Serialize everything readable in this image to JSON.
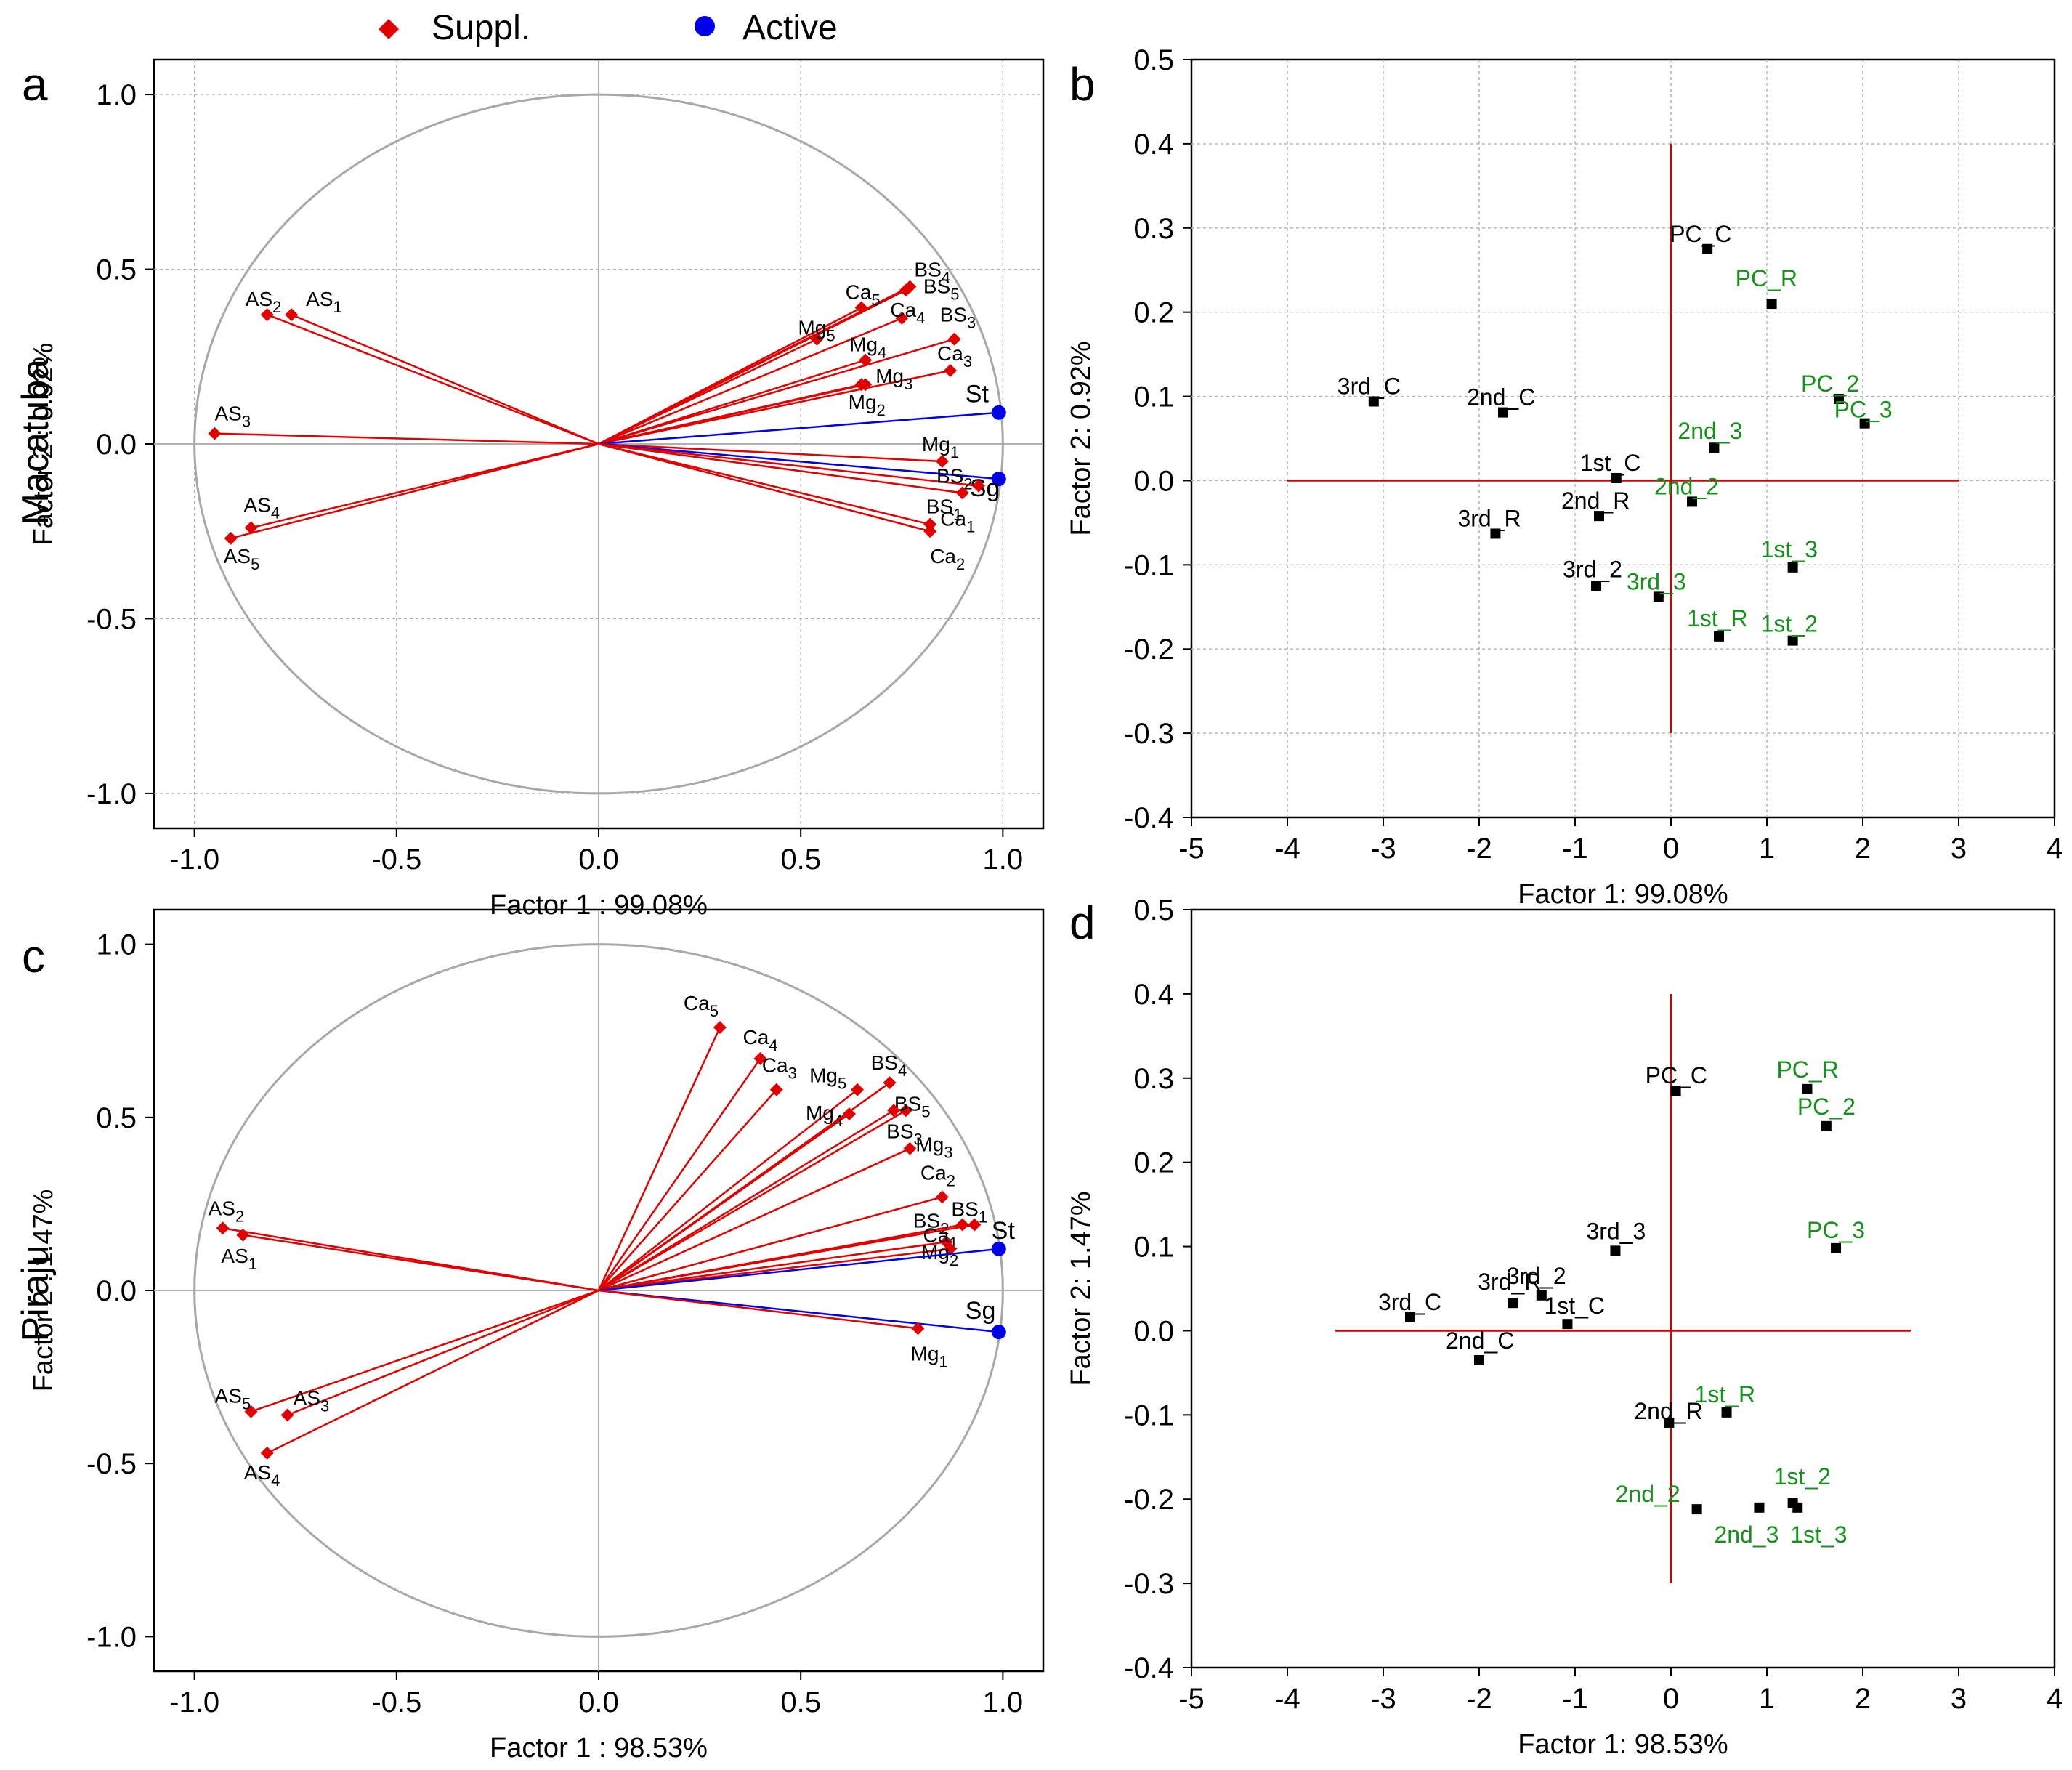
{
  "legend": {
    "items": [
      {
        "label": "Suppl.",
        "color": "#e00000",
        "marker": "diamond"
      },
      {
        "label": "Active",
        "color": "#0000e6",
        "marker": "circle"
      }
    ]
  },
  "site_labels": {
    "macatuba": "Macatuba",
    "piraju": "Piraju"
  },
  "panel_letters": {
    "a": "a",
    "b": "b",
    "c": "c",
    "d": "d"
  },
  "colors": {
    "suppl": "#e00000",
    "active": "#0000e6",
    "green": "#16921c",
    "black": "#000000",
    "axis_line": "#d40000",
    "grid": "#b0b0b0"
  },
  "chart_data": [
    {
      "id": "a",
      "type": "scatter",
      "subtype": "pca-correlation-circle",
      "site": "Macatuba",
      "xlabel": "Factor 1 : 99.08%",
      "ylabel": "Factor 2 :  0.92%",
      "xlim": [
        -1.1,
        1.1
      ],
      "ylim": [
        -1.1,
        1.1
      ],
      "xticks": [
        -1.0,
        -0.5,
        0.0,
        0.5,
        1.0
      ],
      "yticks": [
        -1.0,
        -0.5,
        0.0,
        0.5,
        1.0
      ],
      "xtick_labels": [
        "-1.0",
        "-0.5",
        "0.0",
        "0.5",
        "1.0"
      ],
      "ytick_labels": [
        "-1.0",
        "-0.5",
        "0.0",
        "0.5",
        "1.0"
      ],
      "grid": true,
      "unit_circle": true,
      "points": [
        {
          "label": "AS",
          "sub": "1",
          "x": -0.76,
          "y": 0.37,
          "group": "suppl"
        },
        {
          "label": "AS",
          "sub": "2",
          "x": -0.82,
          "y": 0.37,
          "group": "suppl"
        },
        {
          "label": "AS",
          "sub": "3",
          "x": -0.95,
          "y": 0.03,
          "group": "suppl"
        },
        {
          "label": "AS",
          "sub": "4",
          "x": -0.86,
          "y": -0.24,
          "group": "suppl"
        },
        {
          "label": "AS",
          "sub": "5",
          "x": -0.91,
          "y": -0.27,
          "group": "suppl"
        },
        {
          "label": "BS",
          "sub": "4",
          "x": 0.77,
          "y": 0.45,
          "group": "suppl"
        },
        {
          "label": "BS",
          "sub": "5",
          "x": 0.76,
          "y": 0.44,
          "group": "suppl"
        },
        {
          "label": "Ca",
          "sub": "5",
          "x": 0.65,
          "y": 0.39,
          "group": "suppl"
        },
        {
          "label": "Ca",
          "sub": "4",
          "x": 0.75,
          "y": 0.36,
          "group": "suppl"
        },
        {
          "label": "Mg",
          "sub": "5",
          "x": 0.54,
          "y": 0.3,
          "group": "suppl"
        },
        {
          "label": "BS",
          "sub": "3",
          "x": 0.88,
          "y": 0.3,
          "group": "suppl"
        },
        {
          "label": "Mg",
          "sub": "4",
          "x": 0.66,
          "y": 0.24,
          "group": "suppl"
        },
        {
          "label": "Ca",
          "sub": "3",
          "x": 0.87,
          "y": 0.21,
          "group": "suppl"
        },
        {
          "label": "Mg",
          "sub": "3",
          "x": 0.66,
          "y": 0.17,
          "group": "suppl"
        },
        {
          "label": "Mg",
          "sub": "2",
          "x": 0.65,
          "y": 0.17,
          "group": "suppl"
        },
        {
          "label": "St",
          "sub": "",
          "x": 0.99,
          "y": 0.09,
          "group": "active"
        },
        {
          "label": "Mg",
          "sub": "1",
          "x": 0.85,
          "y": -0.05,
          "group": "suppl"
        },
        {
          "label": "Sg",
          "sub": "",
          "x": 0.99,
          "y": -0.1,
          "group": "active"
        },
        {
          "label": "BS",
          "sub": "2",
          "x": 0.94,
          "y": -0.12,
          "group": "suppl"
        },
        {
          "label": "BS",
          "sub": "1",
          "x": 0.9,
          "y": -0.14,
          "group": "suppl"
        },
        {
          "label": "Ca",
          "sub": "1",
          "x": 0.82,
          "y": -0.23,
          "group": "suppl"
        },
        {
          "label": "Ca",
          "sub": "2",
          "x": 0.82,
          "y": -0.25,
          "group": "suppl"
        }
      ]
    },
    {
      "id": "b",
      "type": "scatter",
      "site": "Macatuba",
      "xlabel": "Factor 1: 99.08%",
      "ylabel": "Factor 2:  0.92%",
      "xlim": [
        -5,
        4
      ],
      "ylim": [
        -0.4,
        0.5
      ],
      "xticks": [
        -5,
        -4,
        -3,
        -2,
        -1,
        0,
        1,
        2,
        3,
        4
      ],
      "yticks": [
        -0.4,
        -0.3,
        -0.2,
        -0.1,
        0.0,
        0.1,
        0.2,
        0.3,
        0.4,
        0.5
      ],
      "xtick_labels": [
        "-5",
        "-4",
        "-3",
        "-2",
        "-1",
        "0",
        "1",
        "2",
        "3",
        "4"
      ],
      "ytick_labels": [
        "-0.4",
        "-0.3",
        "-0.2",
        "-0.1",
        "0.0",
        "0.1",
        "0.2",
        "0.3",
        "0.4",
        "0.5"
      ],
      "grid": true,
      "ref_h": [
        -4,
        3
      ],
      "ref_v": [
        -0.3,
        0.4
      ],
      "points": [
        {
          "label": "PC_C",
          "x": 0.38,
          "y": 0.275,
          "color": "black"
        },
        {
          "label": "PC_R",
          "x": 1.05,
          "y": 0.21,
          "color": "green"
        },
        {
          "label": "PC_2",
          "x": 1.75,
          "y": 0.097,
          "color": "green"
        },
        {
          "label": "PC_3",
          "x": 2.02,
          "y": 0.068,
          "color": "green"
        },
        {
          "label": "3rd_C",
          "x": -3.1,
          "y": 0.094,
          "color": "black"
        },
        {
          "label": "2nd_C",
          "x": -1.75,
          "y": 0.081,
          "color": "black"
        },
        {
          "label": "2nd_3",
          "x": 0.45,
          "y": 0.039,
          "color": "green"
        },
        {
          "label": "1st_C",
          "x": -0.57,
          "y": 0.003,
          "color": "black"
        },
        {
          "label": "2nd_2",
          "x": 0.22,
          "y": -0.025,
          "color": "green"
        },
        {
          "label": "2nd_R",
          "x": -0.75,
          "y": -0.042,
          "color": "black"
        },
        {
          "label": "3rd_R",
          "x": -1.83,
          "y": -0.063,
          "color": "black"
        },
        {
          "label": "1st_3",
          "x": 1.27,
          "y": -0.103,
          "color": "green"
        },
        {
          "label": "3rd_2",
          "x": -0.78,
          "y": -0.125,
          "color": "black"
        },
        {
          "label": "3rd_3",
          "x": -0.13,
          "y": -0.138,
          "color": "green"
        },
        {
          "label": "1st_R",
          "x": 0.5,
          "y": -0.185,
          "color": "green"
        },
        {
          "label": "1st_2",
          "x": 1.27,
          "y": -0.19,
          "color": "green"
        }
      ]
    },
    {
      "id": "c",
      "type": "scatter",
      "subtype": "pca-correlation-circle",
      "site": "Piraju",
      "xlabel": "Factor 1 : 98.53%",
      "ylabel": "Factor 2 :  1.47%",
      "xlim": [
        -1.1,
        1.1
      ],
      "ylim": [
        -1.1,
        1.1
      ],
      "xticks": [
        -1.0,
        -0.5,
        0.0,
        0.5,
        1.0
      ],
      "yticks": [
        -1.0,
        -0.5,
        0.0,
        0.5,
        1.0
      ],
      "xtick_labels": [
        "-1.0",
        "-0.5",
        "0.0",
        "0.5",
        "1.0"
      ],
      "ytick_labels": [
        "-1.0",
        "-0.5",
        "0.0",
        "0.5",
        "1.0"
      ],
      "grid": false,
      "unit_circle": true,
      "points": [
        {
          "label": "AS",
          "sub": "2",
          "x": -0.93,
          "y": 0.18,
          "group": "suppl"
        },
        {
          "label": "AS",
          "sub": "1",
          "x": -0.88,
          "y": 0.16,
          "group": "suppl"
        },
        {
          "label": "AS",
          "sub": "5",
          "x": -0.86,
          "y": -0.35,
          "group": "suppl"
        },
        {
          "label": "AS",
          "sub": "3",
          "x": -0.77,
          "y": -0.36,
          "group": "suppl"
        },
        {
          "label": "AS",
          "sub": "4",
          "x": -0.82,
          "y": -0.47,
          "group": "suppl"
        },
        {
          "label": "Ca",
          "sub": "5",
          "x": 0.3,
          "y": 0.76,
          "group": "suppl"
        },
        {
          "label": "Ca",
          "sub": "4",
          "x": 0.4,
          "y": 0.67,
          "group": "suppl"
        },
        {
          "label": "Ca",
          "sub": "3",
          "x": 0.44,
          "y": 0.58,
          "group": "suppl"
        },
        {
          "label": "Mg",
          "sub": "5",
          "x": 0.64,
          "y": 0.58,
          "group": "suppl"
        },
        {
          "label": "Mg",
          "sub": "4",
          "x": 0.62,
          "y": 0.51,
          "group": "suppl"
        },
        {
          "label": "BS",
          "sub": "4",
          "x": 0.72,
          "y": 0.6,
          "group": "suppl"
        },
        {
          "label": "BS",
          "sub": "5",
          "x": 0.76,
          "y": 0.52,
          "group": "suppl"
        },
        {
          "label": "BS",
          "sub": "3",
          "x": 0.73,
          "y": 0.52,
          "group": "suppl"
        },
        {
          "label": "Mg",
          "sub": "3",
          "x": 0.77,
          "y": 0.41,
          "group": "suppl"
        },
        {
          "label": "Ca",
          "sub": "2",
          "x": 0.85,
          "y": 0.27,
          "group": "suppl"
        },
        {
          "label": "BS",
          "sub": "2",
          "x": 0.9,
          "y": 0.19,
          "group": "suppl"
        },
        {
          "label": "BS",
          "sub": "1",
          "x": 0.93,
          "y": 0.19,
          "group": "suppl"
        },
        {
          "label": "Ca",
          "sub": "1",
          "x": 0.86,
          "y": 0.14,
          "group": "suppl"
        },
        {
          "label": "Mg",
          "sub": "2",
          "x": 0.87,
          "y": 0.12,
          "group": "suppl"
        },
        {
          "label": "St",
          "sub": "",
          "x": 0.99,
          "y": 0.12,
          "group": "active"
        },
        {
          "label": "Sg",
          "sub": "",
          "x": 0.99,
          "y": -0.12,
          "group": "active"
        },
        {
          "label": "Mg",
          "sub": "1",
          "x": 0.79,
          "y": -0.11,
          "group": "suppl"
        }
      ]
    },
    {
      "id": "d",
      "type": "scatter",
      "site": "Piraju",
      "xlabel": "Factor 1: 98.53%",
      "ylabel": "Factor 2:  1.47%",
      "xlim": [
        -5,
        4
      ],
      "ylim": [
        -0.4,
        0.5
      ],
      "xticks": [
        -5,
        -4,
        -3,
        -2,
        -1,
        0,
        1,
        2,
        3,
        4
      ],
      "yticks": [
        -0.4,
        -0.3,
        -0.2,
        -0.1,
        0.0,
        0.1,
        0.2,
        0.3,
        0.4,
        0.5
      ],
      "xtick_labels": [
        "-5",
        "-4",
        "-3",
        "-2",
        "-1",
        "0",
        "1",
        "2",
        "3",
        "4"
      ],
      "ytick_labels": [
        "-0.4",
        "-0.3",
        "-0.2",
        "-0.1",
        "0.0",
        "0.1",
        "0.2",
        "0.3",
        "0.4",
        "0.5"
      ],
      "grid": false,
      "ref_h": [
        -3.5,
        2.5
      ],
      "ref_v": [
        -0.3,
        0.4
      ],
      "points": [
        {
          "label": "PC_C",
          "x": 0.05,
          "y": 0.285,
          "color": "black"
        },
        {
          "label": "PC_R",
          "x": 1.42,
          "y": 0.287,
          "color": "green"
        },
        {
          "label": "PC_2",
          "x": 1.62,
          "y": 0.243,
          "color": "green"
        },
        {
          "label": "PC_3",
          "x": 1.72,
          "y": 0.098,
          "color": "green"
        },
        {
          "label": "3rd_3",
          "x": -0.58,
          "y": 0.095,
          "color": "black"
        },
        {
          "label": "3rd_2",
          "x": -1.35,
          "y": 0.042,
          "color": "black"
        },
        {
          "label": "3rd_R",
          "x": -1.65,
          "y": 0.033,
          "color": "black"
        },
        {
          "label": "3rd_C",
          "x": -2.72,
          "y": 0.016,
          "color": "black"
        },
        {
          "label": "1st_C",
          "x": -1.08,
          "y": 0.008,
          "color": "black"
        },
        {
          "label": "2nd_C",
          "x": -2.0,
          "y": -0.035,
          "color": "black"
        },
        {
          "label": "1st_R",
          "x": 0.58,
          "y": -0.097,
          "color": "green"
        },
        {
          "label": "2nd_R",
          "x": -0.02,
          "y": -0.11,
          "color": "black"
        },
        {
          "label": "1st_2",
          "x": 1.27,
          "y": -0.205,
          "color": "green"
        },
        {
          "label": "2nd_3",
          "x": 0.92,
          "y": -0.21,
          "color": "green"
        },
        {
          "label": "1st_3",
          "x": 1.32,
          "y": -0.21,
          "color": "green"
        },
        {
          "label": "2nd_2",
          "x": 0.27,
          "y": -0.212,
          "color": "green"
        }
      ]
    }
  ]
}
